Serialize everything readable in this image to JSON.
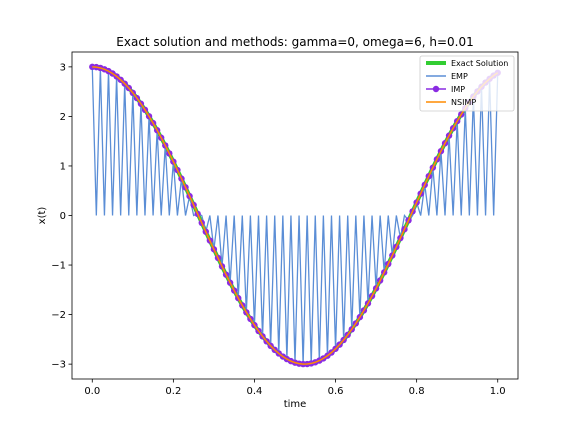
{
  "chart_data": {
    "type": "line",
    "title": "Exact solution and methods: gamma=0, omega=6, h=0.01",
    "xlabel": "time",
    "ylabel": "x(t)",
    "xlim": [
      -0.05,
      1.05
    ],
    "ylim": [
      -3.3,
      3.3
    ],
    "xticks": [
      0.0,
      0.2,
      0.4,
      0.6,
      0.8,
      1.0
    ],
    "xtick_labels": [
      "0.0",
      "0.2",
      "0.4",
      "0.6",
      "0.8",
      "1.0"
    ],
    "yticks": [
      -3,
      -2,
      -1,
      0,
      1,
      2,
      3
    ],
    "ytick_labels": [
      "−3",
      "−2",
      "−1",
      "0",
      "1",
      "2",
      "3"
    ],
    "grid": false,
    "legend_position": "top-right",
    "amplitude": 3,
    "omega": 6,
    "h": 0.01,
    "t_start": 0,
    "t_end": 1,
    "series": [
      {
        "name": "Exact Solution",
        "color": "#32cd32",
        "style": "thick-line",
        "function": "3*cos(6*t)"
      },
      {
        "name": "EMP",
        "color": "#5b8ed6",
        "style": "line",
        "note": "alternates between 3*cos(6*t) and 0 each step"
      },
      {
        "name": "IMP",
        "color": "#8a2be2",
        "style": "line-with-circle-markers",
        "function": "3*cos(6*t)"
      },
      {
        "name": "NSIMP",
        "color": "#ff8c00",
        "style": "line",
        "function": "3*cos(6*t)"
      }
    ]
  }
}
